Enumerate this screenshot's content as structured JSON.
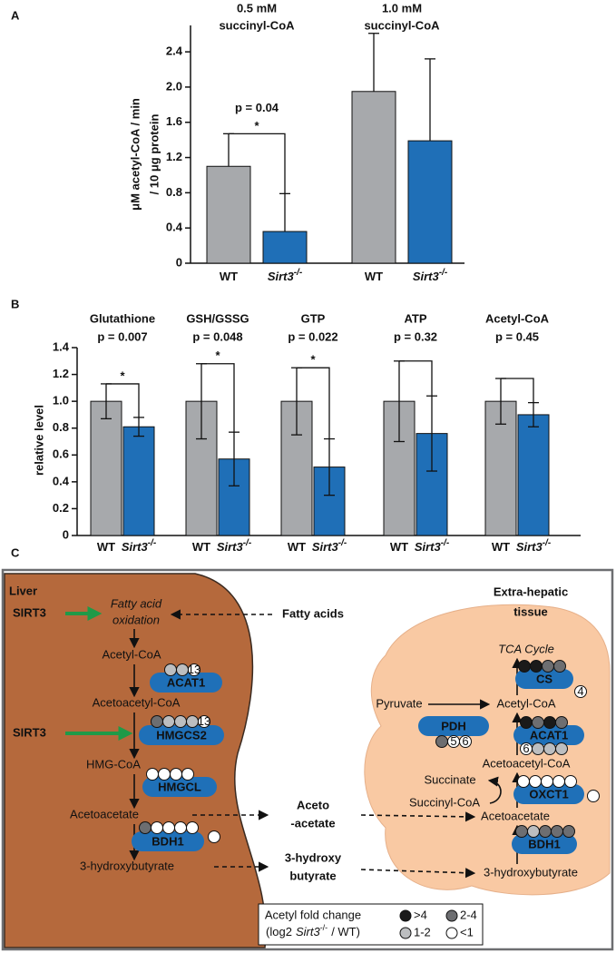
{
  "chart_data": [
    {
      "panel": "A",
      "type": "bar",
      "groups": [
        {
          "label": [
            "0.5 mM",
            "succinyl-CoA"
          ],
          "p_label": "p = 0.04",
          "star": "*"
        },
        {
          "label": [
            "1.0 mM",
            "succinyl-CoA"
          ]
        }
      ],
      "series": [
        {
          "name": "WT",
          "color": "#a7a9ac",
          "values": [
            1.1,
            1.95
          ],
          "errors": [
            0.37,
            0.66
          ]
        },
        {
          "name": "Sirt3",
          "superscript": "-/-",
          "color": "#1f6fb7",
          "values": [
            0.36,
            1.39
          ],
          "errors": [
            0.43,
            0.93
          ]
        }
      ],
      "ylabel": [
        "μM acetyl-CoA / min",
        "/ 10 μg protein"
      ],
      "ylim": [
        0,
        2.7
      ],
      "yticks": [
        0,
        0.4,
        0.8,
        1.2,
        1.6,
        {
          "value": 2,
          "label": "2.0"
        },
        2.4
      ]
    },
    {
      "panel": "B",
      "type": "bar",
      "groups": [
        {
          "label": [
            "Glutathione"
          ],
          "p_label": "p = 0.007",
          "star": "*"
        },
        {
          "label": [
            "GSH/GSSG"
          ],
          "p_label": "p = 0.048",
          "star": "*"
        },
        {
          "label": [
            "GTP"
          ],
          "p_label": "p = 0.022",
          "star": "*"
        },
        {
          "label": [
            "ATP"
          ],
          "p_label": "p = 0.32"
        },
        {
          "label": [
            "Acetyl-CoA"
          ],
          "p_label": "p = 0.45"
        }
      ],
      "series": [
        {
          "name": "WT",
          "color": "#a7a9ac",
          "values": [
            1.0,
            1.0,
            1.0,
            1.0,
            1.0
          ],
          "errors": [
            0.13,
            0.28,
            0.25,
            0.3,
            0.17
          ]
        },
        {
          "name": "Sirt3",
          "superscript": "-/-",
          "color": "#1f6fb7",
          "values": [
            0.81,
            0.57,
            0.51,
            0.76,
            0.9
          ],
          "errors": [
            0.07,
            0.2,
            0.21,
            0.28,
            0.09
          ]
        }
      ],
      "ylabel": [
        "relative level"
      ],
      "ylim": [
        0,
        1.4
      ],
      "yticks": [
        0,
        0.2,
        0.4,
        0.6,
        0.8,
        {
          "value": 1,
          "label": "1.0"
        },
        1.2,
        1.4
      ]
    }
  ],
  "diagram": {
    "panel": "C",
    "texts": [
      "Liver",
      [
        "Extra-hepatic",
        "tissue"
      ],
      "SIRT3",
      [
        "Fatty acid",
        "oxidation"
      ],
      "Fatty acids",
      "Acetyl-CoA",
      "Acetoacetyl-CoA",
      "SIRT3",
      "HMG-CoA",
      "Acetoacetate",
      "3-hydroxybutyrate",
      [
        "Aceto",
        "-acetate"
      ],
      [
        "3-hydroxy",
        "butyrate"
      ],
      "TCA Cycle",
      "Pyruvate",
      "Acetyl-CoA",
      "Acetoacetyl-CoA",
      "Succinate",
      "Succinyl-CoA",
      "Acetoacetate",
      "3-hydroxybutyrate"
    ],
    "enzymes": [
      {
        "name": "ACAT1",
        "circles": [
          2,
          2,
          {
            "level": 3,
            "label": "13"
          }
        ]
      },
      {
        "name": "HMGCS2",
        "circles": [
          1,
          2,
          2,
          2,
          {
            "level": 3,
            "label": "13"
          }
        ]
      },
      {
        "name": "HMGCL",
        "circles": [
          3,
          3,
          3,
          3
        ]
      },
      {
        "name": "BDH1",
        "circles": [
          1,
          3,
          3,
          3,
          3,
          3
        ]
      },
      {
        "name": "CS",
        "circles": [
          0,
          0,
          1,
          1,
          {
            "level": 3,
            "label": "4"
          }
        ]
      },
      {
        "name": "PDH",
        "circles": [
          1,
          {
            "level": 3,
            "label": "5"
          },
          {
            "level": 3,
            "label": "6"
          }
        ]
      },
      {
        "name": "ACAT1",
        "circles": [
          0,
          1,
          0,
          1,
          {
            "level": 3,
            "label": "6"
          },
          2,
          2,
          2
        ]
      },
      {
        "name": "OXCT1",
        "circles": [
          3,
          3,
          3,
          3,
          3,
          3
        ]
      },
      {
        "name": "BDH1",
        "circles": [
          1,
          2,
          1,
          1,
          1
        ]
      }
    ],
    "legend": {
      "title": "Acetyl fold change",
      "subtitle": {
        "before": "(log2",
        "italic": "Sirt3",
        "superscript": "-/-",
        "after": "/ WT)"
      },
      "items": [
        {
          "label": ">4",
          "color": "#1a1a1a"
        },
        {
          "label": "2-4",
          "color": "#6d6e71"
        },
        {
          "label": "1-2",
          "color": "#bcbec0"
        },
        {
          "label": "<1",
          "color": "#ffffff"
        }
      ]
    }
  }
}
